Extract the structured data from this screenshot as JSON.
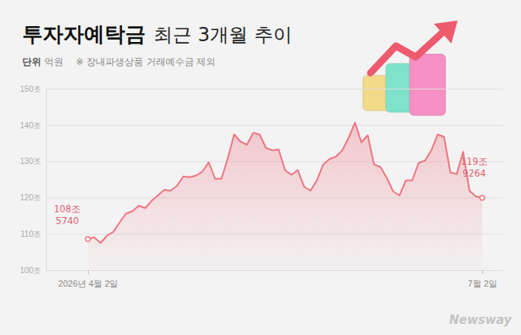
{
  "chart_data": {
    "type": "line",
    "title": "투자자예탁금",
    "subtitle": "최근 3개월 추이",
    "notes": [
      "단위 억원",
      "※ 장내파생상품 거래예수금 제외"
    ],
    "source": "Newsway",
    "categories": [
      "2026년 4월 2일",
      null,
      null,
      null,
      null,
      null,
      null,
      null,
      null,
      null,
      null,
      null,
      null,
      null,
      null,
      null,
      null,
      null,
      null,
      null,
      null,
      null,
      null,
      null,
      null,
      null,
      null,
      null,
      null,
      null,
      null,
      null,
      null,
      null,
      null,
      null,
      null,
      null,
      null,
      null,
      null,
      null,
      null,
      null,
      null,
      null,
      null,
      null,
      null,
      null,
      null,
      null,
      null,
      null,
      null,
      null,
      null,
      null,
      null,
      null,
      null,
      null,
      "7월 2일"
    ],
    "values": [
      108.574,
      109.01,
      107.48,
      109.45,
      110.54,
      113.16,
      115.56,
      116.21,
      117.74,
      117.09,
      119.05,
      120.58,
      122.11,
      121.89,
      123.2,
      125.82,
      125.6,
      126.04,
      127.13,
      129.75,
      125.16,
      125.16,
      130.84,
      137.39,
      135.43,
      134.55,
      137.83,
      137.39,
      133.68,
      133.02,
      133.24,
      127.57,
      126.26,
      127.57,
      122.98,
      121.89,
      124.73,
      129.09,
      130.62,
      131.28,
      133.02,
      136.52,
      140.66,
      135.21,
      137.17,
      129.09,
      128.44,
      125.38,
      121.67,
      120.58,
      124.73,
      124.73,
      129.53,
      130.19,
      133.02,
      137.39,
      136.73,
      126.91,
      126.48,
      132.59,
      121.89,
      120.3,
      119.9264
    ],
    "color": "#ef7480",
    "annotations": [
      [
        "108조",
        "5740"
      ],
      [
        "119조",
        "9264"
      ]
    ],
    "ylim": [
      100,
      150
    ],
    "yticks": [
      {
        "value": 100,
        "label": "100조"
      },
      {
        "value": 110,
        "label": "110조"
      },
      {
        "value": 120,
        "label": "120조"
      },
      {
        "value": 130,
        "label": "130조"
      },
      {
        "value": 140,
        "label": "140조"
      },
      {
        "value": 150,
        "label": "150조"
      }
    ],
    "grid": true
  }
}
